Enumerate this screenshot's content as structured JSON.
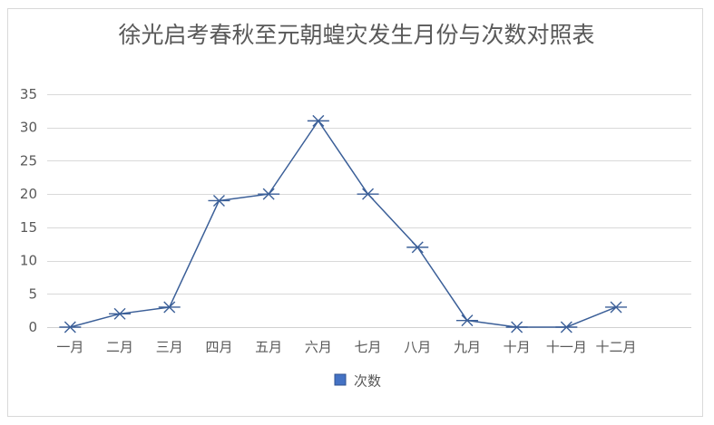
{
  "chart_data": {
    "type": "line",
    "title": "徐光启考春秋至元朝蝗灾发生月份与次数对照表",
    "categories": [
      "一月",
      "二月",
      "三月",
      "四月",
      "五月",
      "六月",
      "七月",
      "八月",
      "九月",
      "十月",
      "十一月",
      "十二月"
    ],
    "series": [
      {
        "name": "次数",
        "values": [
          0,
          2,
          3,
          19,
          20,
          31,
          20,
          12,
          1,
          0,
          0,
          3
        ],
        "color": "#3b5f98",
        "legend_swatch_color": "#4472c4"
      }
    ],
    "ylim": [
      0,
      35
    ],
    "yticks": [
      0,
      5,
      10,
      15,
      20,
      25,
      30,
      35
    ],
    "grid": true,
    "legend": "bottom"
  }
}
